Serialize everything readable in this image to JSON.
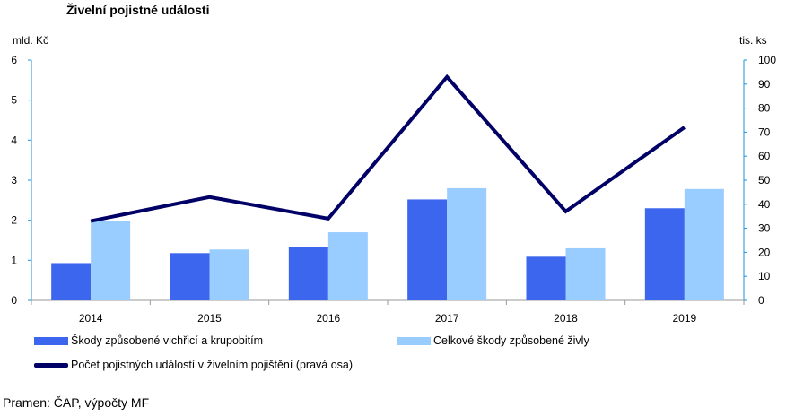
{
  "title": "Živelní pojistné události",
  "source": "Pramen: ČAP, výpočty MF",
  "colors": {
    "series1": "#3D66EE",
    "series2": "#99CCFF",
    "line": "#000066",
    "axis": "#1E90D8"
  },
  "chart_data": {
    "type": "bar+line",
    "title": "Živelní pojistné události",
    "categories": [
      "2014",
      "2015",
      "2016",
      "2017",
      "2018",
      "2019"
    ],
    "y_left_label": "mld. Kč",
    "y_right_label": "tis. ks",
    "y_left_range": [
      0,
      6
    ],
    "y_right_range": [
      0,
      100
    ],
    "y_left_ticks": [
      "0",
      "1",
      "2",
      "3",
      "4",
      "5",
      "6"
    ],
    "y_right_ticks": [
      "0",
      "10",
      "20",
      "30",
      "40",
      "50",
      "60",
      "70",
      "80",
      "90",
      "100"
    ],
    "series": [
      {
        "name": "Škody způsobené vichřicí a krupobitím",
        "type": "bar",
        "axis": "left",
        "values": [
          0.93,
          1.18,
          1.33,
          2.52,
          1.09,
          2.3
        ]
      },
      {
        "name": "Celkové škody způsobené živly",
        "type": "bar",
        "axis": "left",
        "values": [
          1.97,
          1.27,
          1.7,
          2.8,
          1.3,
          2.78
        ]
      },
      {
        "name": "Počet pojistných událostí v živelním pojištění (pravá osa)",
        "type": "line",
        "axis": "right",
        "values": [
          33,
          43,
          34,
          93,
          37,
          72
        ]
      }
    ],
    "grid": false,
    "legend": "bottom"
  }
}
